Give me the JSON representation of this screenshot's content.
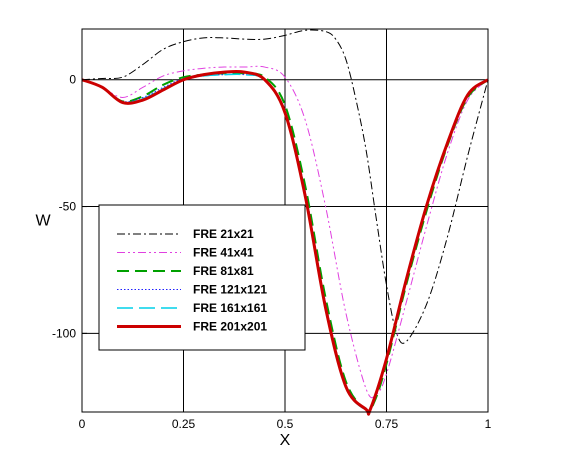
{
  "chart_data": {
    "type": "line",
    "title": "",
    "xlabel": "X",
    "ylabel": "W",
    "xlim": [
      0,
      1
    ],
    "ylim": [
      -131,
      20
    ],
    "xticks": [
      0,
      0.25,
      0.5,
      0.75,
      1
    ],
    "xtick_labels": [
      "0",
      "0.25",
      "0.5",
      "0.75",
      "1"
    ],
    "yticks": [
      0,
      -50,
      -100
    ],
    "ytick_labels": [
      "0",
      "-50",
      "-100"
    ],
    "grid": true,
    "legend_position": "center-left",
    "series": [
      {
        "name": "FRE 21x21",
        "color": "#000000",
        "dash": "dashdot",
        "width": 1,
        "x": [
          0,
          0.05,
          0.1,
          0.15,
          0.2,
          0.25,
          0.3,
          0.35,
          0.4,
          0.45,
          0.5,
          0.55,
          0.6,
          0.625,
          0.65,
          0.675,
          0.7,
          0.725,
          0.75,
          0.775,
          0.8,
          0.85,
          0.9,
          0.95,
          1
        ],
        "y": [
          0,
          0.5,
          1,
          6,
          12,
          15,
          16.5,
          16.5,
          16,
          16,
          17.5,
          19.5,
          19,
          16,
          8,
          -8,
          -28,
          -55,
          -81,
          -100,
          -103,
          -88,
          -62,
          -30,
          0
        ]
      },
      {
        "name": "FRE 41x41",
        "color": "#e040e0",
        "dash": "dashdotdot",
        "width": 1,
        "x": [
          0,
          0.05,
          0.1,
          0.15,
          0.2,
          0.25,
          0.3,
          0.35,
          0.4,
          0.45,
          0.5,
          0.55,
          0.6,
          0.65,
          0.7,
          0.725,
          0.75,
          0.8,
          0.85,
          0.9,
          0.95,
          1
        ],
        "y": [
          0,
          -3,
          -7,
          -3,
          1.5,
          3.5,
          4.5,
          5,
          5,
          5,
          1,
          -16,
          -50,
          -92,
          -122,
          -124,
          -116,
          -87,
          -57,
          -29,
          -8,
          0
        ]
      },
      {
        "name": "FRE 81x81",
        "color": "#00a000",
        "dash": "dash",
        "width": 2,
        "x": [
          0,
          0.05,
          0.1,
          0.15,
          0.2,
          0.25,
          0.3,
          0.35,
          0.4,
          0.45,
          0.5,
          0.55,
          0.6,
          0.65,
          0.7,
          0.72,
          0.75,
          0.8,
          0.85,
          0.9,
          0.95,
          1
        ],
        "y": [
          0,
          -3,
          -8.5,
          -6.5,
          -2,
          1,
          2,
          2.5,
          2.5,
          1,
          -10,
          -42,
          -86,
          -119,
          -130,
          -127,
          -112,
          -80,
          -51,
          -26,
          -7,
          0
        ]
      },
      {
        "name": "FRE 121x121",
        "color": "#2020ff",
        "dash": "dot",
        "width": 1,
        "x": [
          0,
          0.05,
          0.1,
          0.15,
          0.2,
          0.25,
          0.3,
          0.35,
          0.4,
          0.45,
          0.5,
          0.55,
          0.6,
          0.65,
          0.7,
          0.71,
          0.75,
          0.8,
          0.85,
          0.9,
          0.95,
          1
        ],
        "y": [
          0,
          -3,
          -8.5,
          -7,
          -3,
          0.5,
          1.5,
          2,
          2,
          0,
          -12,
          -44,
          -88,
          -120,
          -130,
          -129.5,
          -110,
          -78,
          -49,
          -25,
          -6,
          0
        ]
      },
      {
        "name": "FRE 161x161",
        "color": "#00d0e8",
        "dash": "longdash",
        "width": 1.5,
        "x": [
          0,
          0.05,
          0.1,
          0.15,
          0.2,
          0.25,
          0.3,
          0.35,
          0.4,
          0.45,
          0.5,
          0.55,
          0.6,
          0.65,
          0.7,
          0.71,
          0.75,
          0.8,
          0.85,
          0.9,
          0.95,
          1
        ],
        "y": [
          0,
          -3,
          -8.8,
          -7.5,
          -3.5,
          0,
          1.5,
          2,
          2,
          0,
          -12.5,
          -45,
          -89,
          -121,
          -130.5,
          -130,
          -110,
          -78,
          -49,
          -25,
          -6,
          0
        ]
      },
      {
        "name": "FRE 201x201",
        "color": "#cc0000",
        "dash": "solid",
        "width": 3,
        "x": [
          0,
          0.05,
          0.1,
          0.15,
          0.2,
          0.25,
          0.3,
          0.35,
          0.4,
          0.45,
          0.5,
          0.55,
          0.6,
          0.65,
          0.7,
          0.71,
          0.75,
          0.8,
          0.85,
          0.9,
          0.95,
          1
        ],
        "y": [
          0,
          -3,
          -9,
          -8,
          -4,
          0,
          2,
          3,
          3,
          0,
          -13,
          -46,
          -90,
          -121,
          -130,
          -130,
          -110,
          -78,
          -49,
          -25,
          -6,
          0
        ]
      }
    ]
  }
}
